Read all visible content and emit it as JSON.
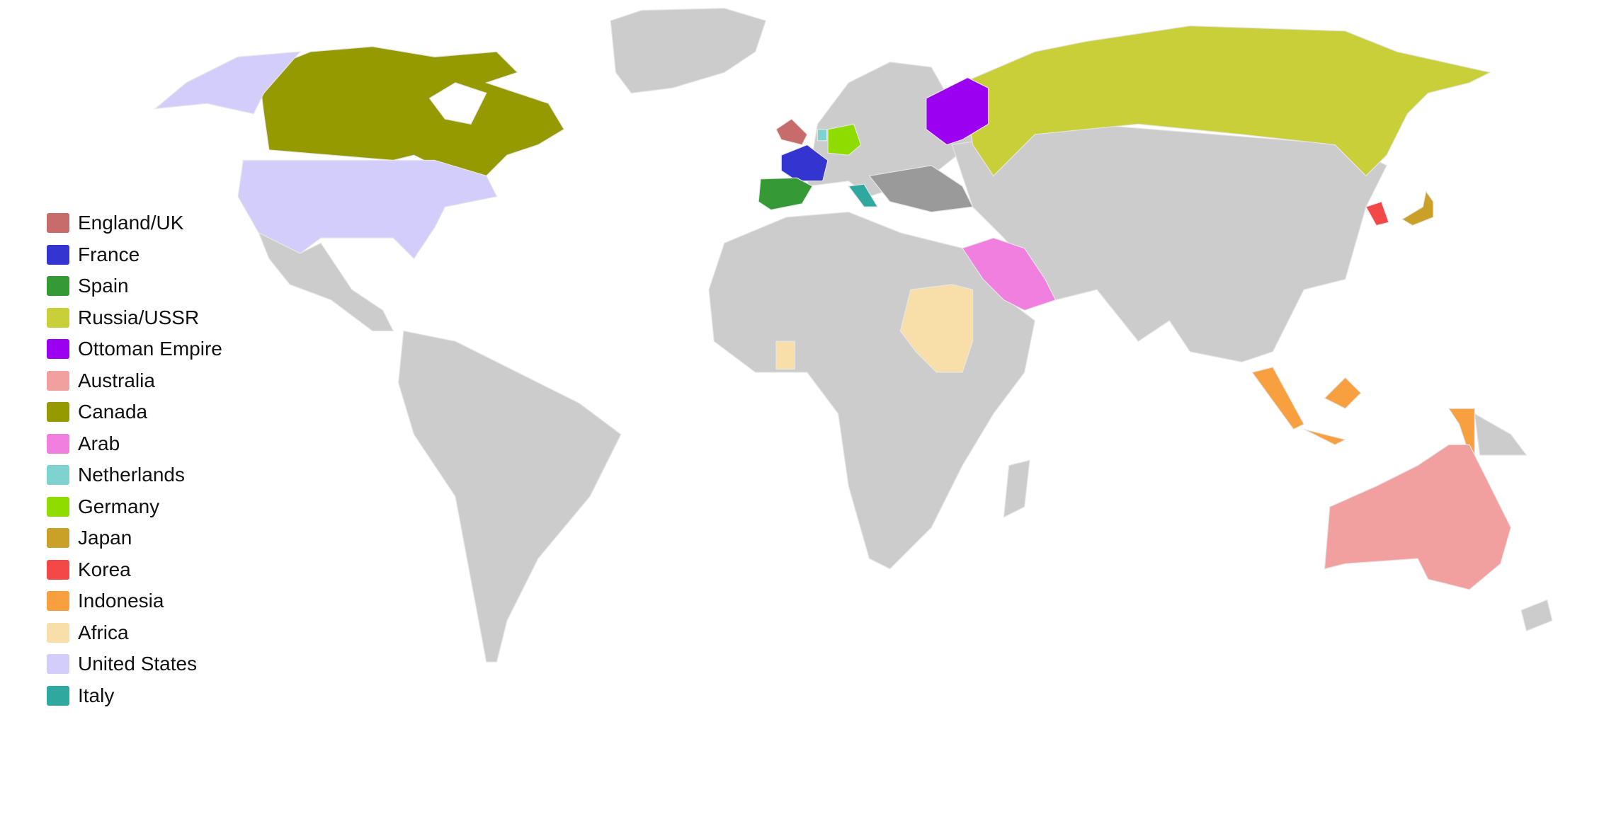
{
  "map": {
    "land_color": "#cccccc",
    "border_color": "#e6e6e6",
    "ocean_color": "#ffffff",
    "highlight_gray": "#9a9a9a"
  },
  "legend": [
    {
      "id": "uk",
      "label": "England/UK",
      "color": "#c76b6b"
    },
    {
      "id": "france",
      "label": "France",
      "color": "#3434d0"
    },
    {
      "id": "spain",
      "label": "Spain",
      "color": "#359a35"
    },
    {
      "id": "russia",
      "label": "Russia/USSR",
      "color": "#c9cf38"
    },
    {
      "id": "ottoman",
      "label": "Ottoman Empire",
      "color": "#9b00f0"
    },
    {
      "id": "australia",
      "label": "Australia",
      "color": "#f29f9f"
    },
    {
      "id": "canada",
      "label": "Canada",
      "color": "#959a00"
    },
    {
      "id": "arab",
      "label": "Arab",
      "color": "#f07fe0"
    },
    {
      "id": "netherlands",
      "label": "Netherlands",
      "color": "#7ed3d0"
    },
    {
      "id": "germany",
      "label": "Germany",
      "color": "#8fdd00"
    },
    {
      "id": "japan",
      "label": "Japan",
      "color": "#c9a028"
    },
    {
      "id": "korea",
      "label": "Korea",
      "color": "#f44848"
    },
    {
      "id": "indonesia",
      "label": "Indonesia",
      "color": "#f8a040"
    },
    {
      "id": "africa",
      "label": "Africa",
      "color": "#f8dfaa"
    },
    {
      "id": "us",
      "label": "United States",
      "color": "#d3cdfb"
    },
    {
      "id": "italy",
      "label": "Italy",
      "color": "#2fa9a0"
    }
  ]
}
